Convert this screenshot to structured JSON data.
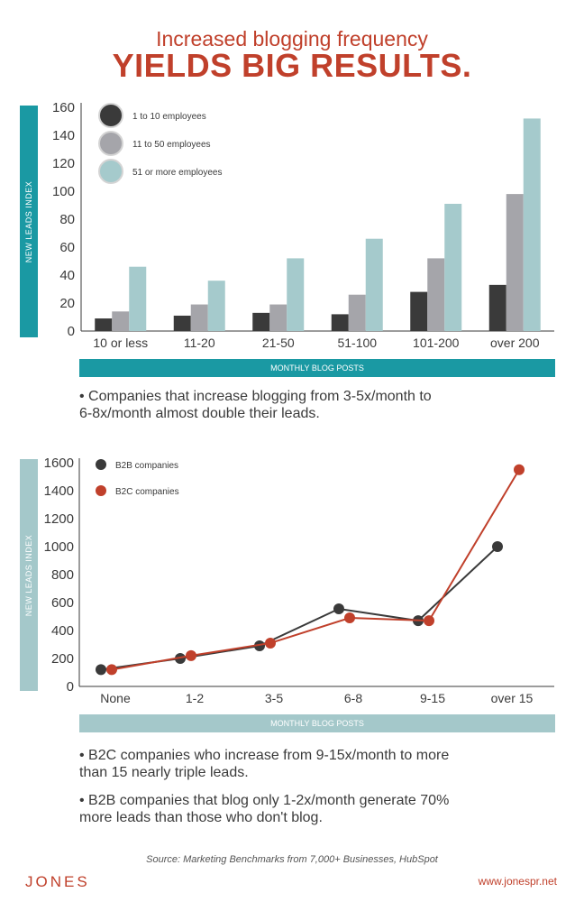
{
  "header": {
    "title_line1": "Increased blogging frequency",
    "title_line2": "YIELDS BIG RESULTS."
  },
  "colors": {
    "accent_red": "#c0402b",
    "teal": "#1a99a3",
    "light_teal": "#a4c8ca",
    "dark_gray": "#3a3a3a",
    "mid_gray": "#a5a5aa",
    "light_teal_bar": "#a5cacc"
  },
  "chart_data": [
    {
      "type": "bar",
      "categories": [
        "10 or less",
        "11-20",
        "21-50",
        "51-100",
        "101-200",
        "over 200"
      ],
      "series": [
        {
          "name": "1 to 10 employees",
          "color": "#3a3a3a",
          "values": [
            9,
            11,
            13,
            12,
            28,
            33
          ]
        },
        {
          "name": "11 to 50 employees",
          "color": "#a5a5aa",
          "values": [
            14,
            19,
            19,
            26,
            52,
            98
          ]
        },
        {
          "name": "51 or more employees",
          "color": "#a5cacc",
          "values": [
            46,
            36,
            52,
            66,
            91,
            152
          ]
        }
      ],
      "ylabel": "NEW LEADS INDEX",
      "xlabel": "MONTHLY BLOG POSTS",
      "ylim": [
        0,
        160
      ],
      "yticks": [
        0,
        20,
        40,
        60,
        80,
        100,
        120,
        140,
        160
      ],
      "legend_position": "top-left",
      "grid": false
    },
    {
      "type": "line",
      "categories": [
        "None",
        "1-2",
        "3-5",
        "6-8",
        "9-15",
        "over 15"
      ],
      "series": [
        {
          "name": "B2B companies",
          "color": "#3a3a3a",
          "values": [
            120,
            200,
            290,
            555,
            470,
            1000
          ]
        },
        {
          "name": "B2C companies",
          "color": "#c0402b",
          "values": [
            120,
            220,
            310,
            490,
            470,
            1550
          ]
        }
      ],
      "ylabel": "NEW LEADS INDEX",
      "xlabel": "MONTHLY BLOG POSTS",
      "ylim": [
        0,
        1600
      ],
      "yticks": [
        0,
        200,
        400,
        600,
        800,
        1000,
        1200,
        1400,
        1600
      ],
      "legend_position": "top-left",
      "grid": false
    }
  ],
  "notes": {
    "bar_note_1": "• Companies that increase blogging from 3-5x/month to",
    "bar_note_2": "6-8x/month almost double their leads.",
    "line_note_a1": "• B2C companies who increase from 9-15x/month to more",
    "line_note_a2": "than 15 nearly triple leads.",
    "line_note_b1": "• B2B companies that blog only 1-2x/month generate 70%",
    "line_note_b2": "more leads than those who don't blog."
  },
  "footer": {
    "source": "Source: Marketing Benchmarks from 7,000+ Businesses, HubSpot",
    "logo": "JONES",
    "url": "www.jonespr.net"
  }
}
